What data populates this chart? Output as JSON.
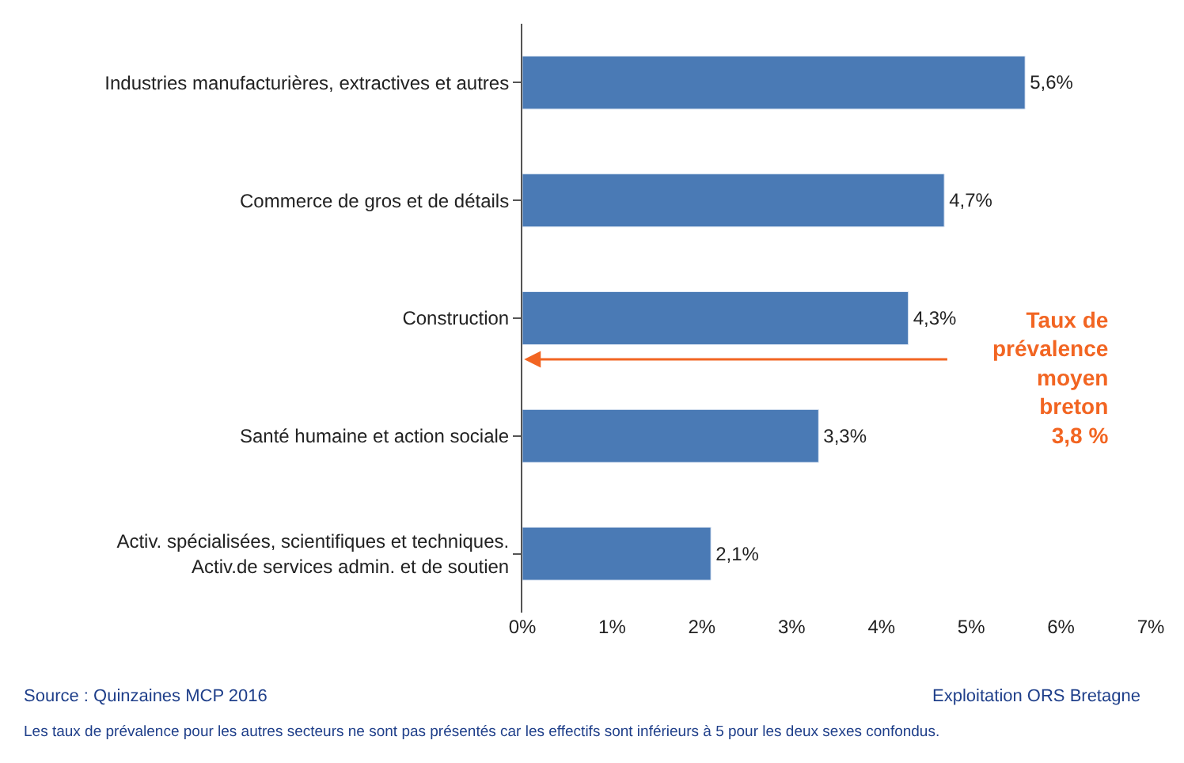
{
  "chart_data": {
    "type": "bar",
    "orientation": "horizontal",
    "categories": [
      "Industries manufacturières, extractives et autres",
      "Commerce de gros et de détails",
      "Construction",
      "Santé humaine et action sociale",
      "Activ. spécialisées, scientifiques et techniques.\nActiv.de services admin. et de soutien"
    ],
    "values": [
      5.6,
      4.7,
      4.3,
      3.3,
      2.1
    ],
    "value_labels": [
      "5,6%",
      "4,7%",
      "4,3%",
      "3,3%",
      "2,1%"
    ],
    "color": "#4a7ab5",
    "xlim": [
      0,
      7
    ],
    "xticks": [
      {
        "value": 0,
        "label": "0%"
      },
      {
        "value": 1,
        "label": "1%"
      },
      {
        "value": 2,
        "label": "2%"
      },
      {
        "value": 3,
        "label": "3%"
      },
      {
        "value": 4,
        "label": "4%"
      },
      {
        "value": 5,
        "label": "5%"
      },
      {
        "value": 6,
        "label": "6%"
      },
      {
        "value": 7,
        "label": "7%"
      }
    ],
    "legend": false,
    "annotations": [
      "Taux de\nprévalence\nmoyen\nbreton\n3,8 %",
      "Source : Quinzaines MCP 2016",
      "Exploitation ORS Bretagne",
      "Les taux de prévalence pour les autres secteurs ne sont pas présentés car les effectifs sont inférieurs à 5 pour les deux sexes confondus."
    ]
  }
}
